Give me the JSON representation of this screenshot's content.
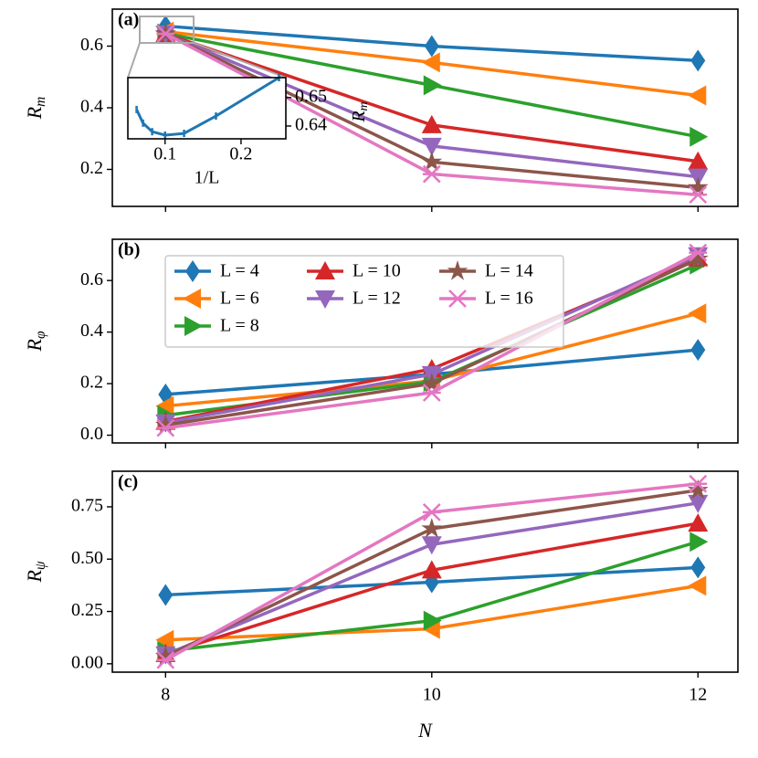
{
  "chart_data": [
    {
      "type": "line",
      "title": "(a)",
      "ylabel": "R",
      "ylabel_sub": "m",
      "show_xticklabels": false,
      "x": [
        8,
        10,
        12
      ],
      "xlim": [
        7.6,
        12.3
      ],
      "xticks": [
        8,
        10,
        12
      ],
      "ylim": [
        0.08,
        0.72
      ],
      "yticks": [
        0.2,
        0.4,
        0.6
      ],
      "series": [
        {
          "name": "L = 4",
          "color": "#1f77b4",
          "marker": "d",
          "values": [
            0.665,
            0.6,
            0.553
          ]
        },
        {
          "name": "L = 6",
          "color": "#ff7f0e",
          "marker": "<",
          "values": [
            0.647,
            0.547,
            0.44
          ]
        },
        {
          "name": "L = 8",
          "color": "#2ca02c",
          "marker": ">",
          "values": [
            0.641,
            0.473,
            0.306
          ]
        },
        {
          "name": "L = 10",
          "color": "#d62728",
          "marker": "^",
          "values": [
            0.64,
            0.344,
            0.226
          ]
        },
        {
          "name": "L = 12",
          "color": "#9467bd",
          "marker": "v",
          "values": [
            0.64,
            0.276,
            0.176
          ]
        },
        {
          "name": "L = 14",
          "color": "#8c564b",
          "marker": "star",
          "values": [
            0.64,
            0.224,
            0.141
          ]
        },
        {
          "name": "L = 16",
          "color": "#e377c2",
          "marker": "x",
          "values": [
            0.64,
            0.185,
            0.118
          ]
        }
      ],
      "inset": {
        "type": "line",
        "xlabel": "1/L",
        "ylabel": "R",
        "ylabel_sub": "m",
        "x": [
          0.25,
          0.167,
          0.125,
          0.1,
          0.083,
          0.071,
          0.0625
        ],
        "xlim": [
          0.051,
          0.259
        ],
        "xticks": [
          0.1,
          0.2
        ],
        "ylim": [
          0.6355,
          0.657
        ],
        "yticks": [
          0.64,
          0.65
        ],
        "series": [
          {
            "color": "#1f77b4",
            "marker": "|",
            "values": [
              0.657,
              0.6435,
              0.6374,
              0.6368,
              0.638,
              0.641,
              0.6458
            ]
          }
        ]
      }
    },
    {
      "type": "line",
      "title": "(b)",
      "ylabel": "R",
      "ylabel_sub": "φ",
      "show_xticklabels": false,
      "legend": "upper left",
      "x": [
        8,
        10,
        12
      ],
      "xlim": [
        7.6,
        12.3
      ],
      "xticks": [
        8,
        10,
        12
      ],
      "ylim": [
        -0.03,
        0.76
      ],
      "yticks": [
        {
          "value": 0,
          "label": "0.0"
        },
        0.2,
        0.4,
        0.6
      ],
      "series": [
        {
          "name": "L = 4",
          "color": "#1f77b4",
          "marker": "d",
          "values": [
            0.158,
            0.236,
            0.331
          ]
        },
        {
          "name": "L = 6",
          "color": "#ff7f0e",
          "marker": "<",
          "values": [
            0.113,
            0.211,
            0.472
          ]
        },
        {
          "name": "L = 8",
          "color": "#2ca02c",
          "marker": ">",
          "values": [
            0.077,
            0.208,
            0.662
          ]
        },
        {
          "name": "L = 10",
          "color": "#d62728",
          "marker": "^",
          "values": [
            0.053,
            0.257,
            0.687
          ]
        },
        {
          "name": "L = 12",
          "color": "#9467bd",
          "marker": "v",
          "values": [
            0.049,
            0.236,
            0.697
          ]
        },
        {
          "name": "L = 14",
          "color": "#8c564b",
          "marker": "star",
          "values": [
            0.039,
            0.2,
            0.683
          ]
        },
        {
          "name": "L = 16",
          "color": "#e377c2",
          "marker": "x",
          "values": [
            0.028,
            0.165,
            0.708
          ]
        }
      ]
    },
    {
      "type": "line",
      "title": "(c)",
      "ylabel": "R",
      "ylabel_sub": "ψ",
      "xlabel": "N",
      "show_xticklabels": true,
      "x": [
        8,
        10,
        12
      ],
      "xlim": [
        7.6,
        12.3
      ],
      "xticks": [
        8,
        10,
        12
      ],
      "ylim": [
        -0.04,
        0.92
      ],
      "yticks": [
        {
          "value": 0,
          "label": "0.00"
        },
        0.25,
        {
          "value": 0.5,
          "label": "0.50"
        },
        0.75
      ],
      "series": [
        {
          "name": "L = 4",
          "color": "#1f77b4",
          "marker": "d",
          "values": [
            0.329,
            0.39,
            0.46
          ]
        },
        {
          "name": "L = 6",
          "color": "#ff7f0e",
          "marker": "<",
          "values": [
            0.114,
            0.167,
            0.373
          ]
        },
        {
          "name": "L = 8",
          "color": "#2ca02c",
          "marker": ">",
          "values": [
            0.061,
            0.206,
            0.583
          ]
        },
        {
          "name": "L = 10",
          "color": "#d62728",
          "marker": "^",
          "values": [
            0.048,
            0.447,
            0.671
          ]
        },
        {
          "name": "L = 12",
          "color": "#9467bd",
          "marker": "v",
          "values": [
            0.044,
            0.57,
            0.768
          ]
        },
        {
          "name": "L = 14",
          "color": "#8c564b",
          "marker": "star",
          "values": [
            0.035,
            0.645,
            0.829
          ]
        },
        {
          "name": "L = 16",
          "color": "#e377c2",
          "marker": "x",
          "values": [
            0.018,
            0.724,
            0.86
          ]
        }
      ]
    }
  ]
}
